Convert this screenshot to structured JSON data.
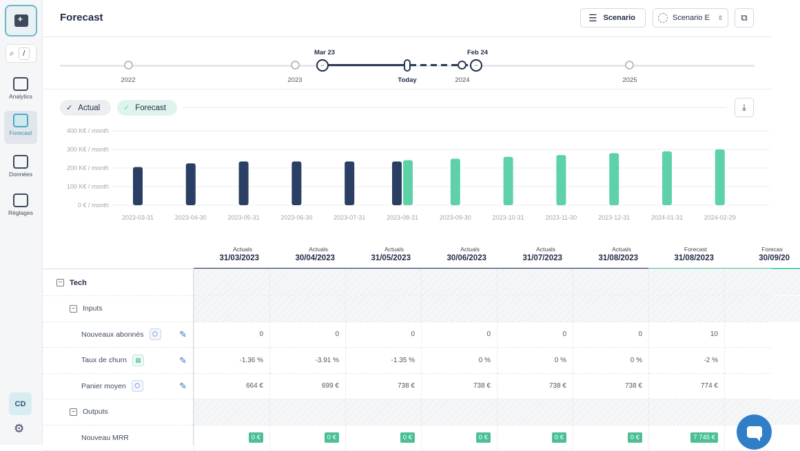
{
  "app": {
    "title": "Forecast"
  },
  "sidebar": {
    "search_shortcut": "/",
    "items": [
      {
        "id": "analytics",
        "label": "Analytics",
        "icon": "analytics-icon"
      },
      {
        "id": "forecast",
        "label": "Forecast",
        "icon": "forecast-icon",
        "active": true
      },
      {
        "id": "donnees",
        "label": "Données",
        "icon": "database-icon"
      },
      {
        "id": "reglages",
        "label": "Réglages",
        "icon": "sliders-icon"
      }
    ],
    "avatar": "CD"
  },
  "header": {
    "scenario_button": "Scenario",
    "scenario_select": "Scenario E"
  },
  "timeline": {
    "years": [
      "2022",
      "2023",
      "2024",
      "2025"
    ],
    "today_label": "Today",
    "start_tag": "Mar 23",
    "end_tag": "Feb 24"
  },
  "legend": {
    "actual": "Actual",
    "forecast": "Forecast",
    "colors": {
      "actual": "#2a3f63",
      "forecast": "#5ed1a9"
    }
  },
  "chart_data": {
    "type": "bar",
    "y_tick_labels": [
      "400 K€ / month",
      "300 K€ / month",
      "200 K€ / month",
      "100 K€ / month",
      "0 € / month"
    ],
    "ylim": [
      0,
      400
    ],
    "categories": [
      "2023-03-31",
      "2023-04-30",
      "2023-05-31",
      "2023-06-30",
      "2023-07-31",
      "2023-08-31",
      "2023-09-30",
      "2023-10-31",
      "2023-11-30",
      "2023-12-31",
      "2024-01-31",
      "2024-02-29"
    ],
    "series": [
      {
        "name": "Actual",
        "values": [
          205,
          225,
          235,
          235,
          235,
          235,
          null,
          null,
          null,
          null,
          null,
          null
        ]
      },
      {
        "name": "Forecast",
        "values": [
          null,
          null,
          null,
          null,
          null,
          242,
          250,
          260,
          270,
          280,
          290,
          300
        ]
      }
    ],
    "grid": true
  },
  "table": {
    "columns": [
      {
        "kind": "Actuals",
        "date": "31/03/2023",
        "type": "actual"
      },
      {
        "kind": "Actuals",
        "date": "30/04/2023",
        "type": "actual"
      },
      {
        "kind": "Actuals",
        "date": "31/05/2023",
        "type": "actual"
      },
      {
        "kind": "Actuals",
        "date": "30/06/2023",
        "type": "actual"
      },
      {
        "kind": "Actuals",
        "date": "31/07/2023",
        "type": "actual"
      },
      {
        "kind": "Actuals",
        "date": "31/08/2023",
        "type": "actual"
      },
      {
        "kind": "Forecast",
        "date": "31/08/2023",
        "type": "forecast"
      },
      {
        "kind": "Forecas",
        "date": "30/09/20",
        "type": "forecast"
      }
    ],
    "rows": [
      {
        "label": "Tech",
        "kind": "group",
        "level": 0,
        "cells": [
          "",
          "",
          "",
          "",
          "",
          "",
          "",
          ""
        ]
      },
      {
        "label": "Inputs",
        "kind": "group",
        "level": 1,
        "cells": [
          "",
          "",
          "",
          "",
          "",
          "",
          "",
          ""
        ]
      },
      {
        "label": "Nouveaux abonnés",
        "kind": "input",
        "badge": "⬡",
        "cells": [
          "0",
          "0",
          "0",
          "0",
          "0",
          "0",
          "10",
          ""
        ]
      },
      {
        "label": "Taux de churn",
        "kind": "input",
        "badge": "▦",
        "badge_green": true,
        "cells": [
          "-1.36 %",
          "-3.91 %",
          "-1.35 %",
          "0 %",
          "0 %",
          "0 %",
          "-2 %",
          ""
        ]
      },
      {
        "label": "Panier moyen",
        "kind": "input",
        "badge": "⬡",
        "cells": [
          "664 €",
          "699 €",
          "738 €",
          "738 €",
          "738 €",
          "738 €",
          "774 €",
          ""
        ]
      },
      {
        "label": "Outputs",
        "kind": "group",
        "level": 1,
        "cells": [
          "",
          "",
          "",
          "",
          "",
          "",
          "",
          ""
        ]
      },
      {
        "label": "Nouveau MRR",
        "kind": "output",
        "cells": [
          "0 €",
          "0 €",
          "0 €",
          "0 €",
          "0 €",
          "0 €",
          "7 745 €",
          ""
        ]
      }
    ]
  }
}
